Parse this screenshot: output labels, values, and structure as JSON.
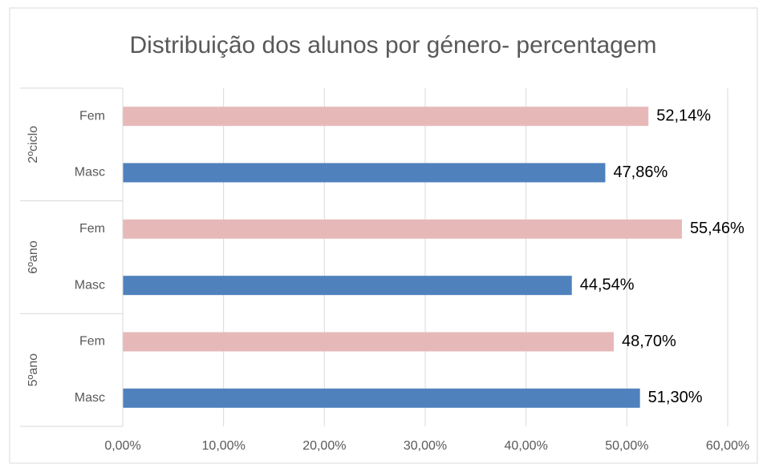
{
  "chart_data": {
    "type": "grouped-hbar",
    "title": "Distribuição dos alunos por género- percentagem",
    "groups": [
      {
        "name": "2ºciclo",
        "categories": [
          "Fem",
          "Masc"
        ],
        "values": [
          52.14,
          47.86
        ],
        "value_labels": [
          "52,14%",
          "47,86%"
        ],
        "colors": [
          "#e6b9b8",
          "#4f81bd"
        ]
      },
      {
        "name": "6ºano",
        "categories": [
          "Fem",
          "Masc"
        ],
        "values": [
          55.46,
          44.54
        ],
        "value_labels": [
          "55,46%",
          "44,54%"
        ],
        "colors": [
          "#e6b9b8",
          "#4f81bd"
        ]
      },
      {
        "name": "5ºano",
        "categories": [
          "Fem",
          "Masc"
        ],
        "values": [
          48.7,
          51.3
        ],
        "value_labels": [
          "48,70%",
          "51,30%"
        ],
        "colors": [
          "#e6b9b8",
          "#4f81bd"
        ]
      }
    ],
    "xlim": [
      0,
      60
    ],
    "xticks": [
      {
        "value": 0,
        "label": "0,00%"
      },
      {
        "value": 10,
        "label": "10,00%"
      },
      {
        "value": 20,
        "label": "20,00%"
      },
      {
        "value": 30,
        "label": "30,00%"
      },
      {
        "value": 40,
        "label": "40,00%"
      },
      {
        "value": 50,
        "label": "50,00%"
      },
      {
        "value": 60,
        "label": "60,00%"
      }
    ],
    "grid": true
  }
}
